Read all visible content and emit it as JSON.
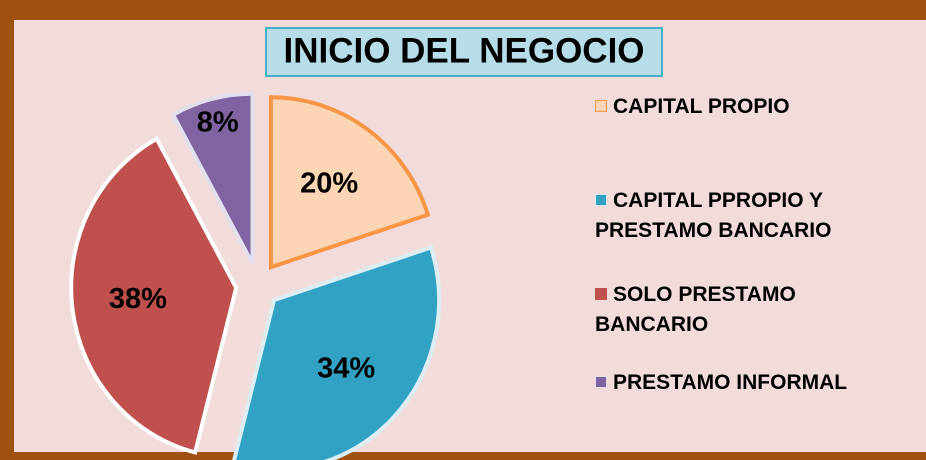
{
  "chart_data": {
    "type": "pie",
    "title": "INICIO DEL NEGOCIO",
    "categories": [
      "CAPITAL PROPIO",
      "CAPITAL PPROPIO Y PRESTAMO BANCARIO",
      "SOLO PRESTAMO BANCARIO",
      "PRESTAMO INFORMAL"
    ],
    "values": [
      20,
      34,
      38,
      8
    ],
    "value_labels": [
      "20%",
      "34%",
      "38%",
      "8%"
    ],
    "colors": [
      "#fcd5b5",
      "#31a2c4",
      "#c0504d",
      "#8064a2"
    ],
    "edge_colors": [
      "#f79646",
      "#dbeef3",
      "#ffffff",
      "#e4dfec"
    ],
    "legend": "right"
  }
}
